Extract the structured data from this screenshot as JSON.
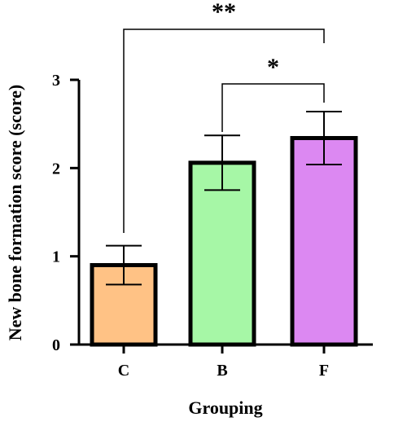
{
  "chart_data": {
    "type": "bar",
    "categories": [
      "C",
      "B",
      "F"
    ],
    "values": [
      0.9,
      2.06,
      2.34
    ],
    "errors": [
      0.22,
      0.31,
      0.3
    ],
    "colors": [
      "#FFC285",
      "#A6F7A6",
      "#DC88F2"
    ],
    "title": "",
    "xlabel": "Grouping",
    "ylabel": "New bone formation score (score)",
    "ylim": [
      0,
      3
    ],
    "yticks": [
      0,
      1,
      2,
      3
    ],
    "grid": false,
    "significance": [
      {
        "from": "C",
        "to": "F",
        "label": "**"
      },
      {
        "from": "B",
        "to": "F",
        "label": "*"
      }
    ]
  }
}
